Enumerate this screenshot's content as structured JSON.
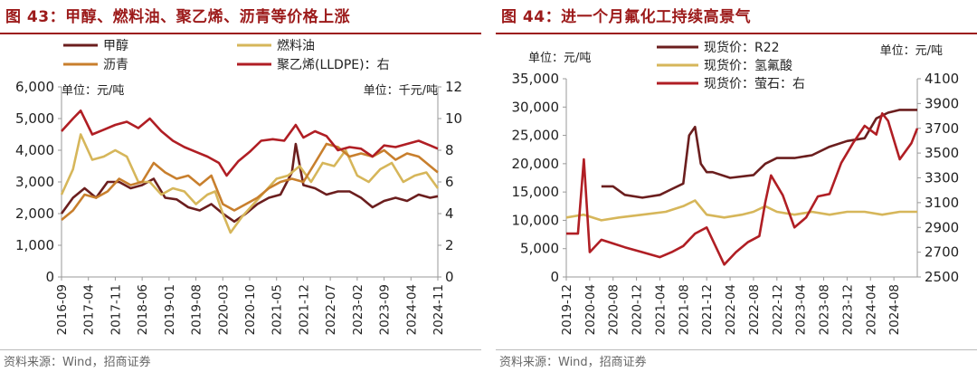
{
  "chart_data": [
    {
      "type": "line",
      "title": "图 43：甲醇、燃料油、聚乙烯、沥青等价格上涨",
      "source": "资料来源：Wind，招商证券",
      "left_unit": "单位：元/吨",
      "right_unit": "单位：千元/吨",
      "ylim_left": [
        0,
        6000
      ],
      "yticks_left": [
        "0",
        "1,000",
        "2,000",
        "3,000",
        "4,000",
        "5,000",
        "6,000"
      ],
      "ylim_right": [
        0,
        12
      ],
      "yticks_right": [
        "0",
        "2",
        "4",
        "6",
        "8",
        "10",
        "12"
      ],
      "x_ticks": [
        "2016-09",
        "2017-04",
        "2017-11",
        "2018-06",
        "2019-01",
        "2019-08",
        "2020-03",
        "2020-10",
        "2021-05",
        "2021-12",
        "2022-07",
        "2023-02",
        "2023-09",
        "2024-04",
        "2024-11"
      ],
      "x_range": [
        "2016-09",
        "2024-11"
      ],
      "legend_placement": "top",
      "series": [
        {
          "name": "甲醇",
          "axis": "left",
          "color": "#6b1e1e",
          "x": [
            "2016-09",
            "2016-12",
            "2017-03",
            "2017-06",
            "2017-09",
            "2017-12",
            "2018-03",
            "2018-06",
            "2018-09",
            "2018-12",
            "2019-03",
            "2019-06",
            "2019-09",
            "2019-12",
            "2020-03",
            "2020-06",
            "2020-09",
            "2020-12",
            "2021-03",
            "2021-06",
            "2021-09",
            "2021-10",
            "2021-12",
            "2022-03",
            "2022-06",
            "2022-09",
            "2022-12",
            "2023-03",
            "2023-06",
            "2023-09",
            "2023-12",
            "2024-03",
            "2024-06",
            "2024-09",
            "2024-11"
          ],
          "values": [
            2000,
            2500,
            2800,
            2500,
            3000,
            3000,
            2800,
            2900,
            3100,
            2500,
            2450,
            2200,
            2100,
            2300,
            2000,
            1750,
            2000,
            2300,
            2500,
            2600,
            3300,
            4200,
            2900,
            2800,
            2600,
            2700,
            2700,
            2500,
            2200,
            2400,
            2500,
            2400,
            2600,
            2500,
            2550
          ]
        },
        {
          "name": "燃料油",
          "axis": "left",
          "color": "#d6b65a",
          "x": [
            "2016-09",
            "2016-12",
            "2017-02",
            "2017-05",
            "2017-08",
            "2017-11",
            "2018-02",
            "2018-05",
            "2018-08",
            "2018-11",
            "2019-02",
            "2019-05",
            "2019-08",
            "2019-11",
            "2020-01",
            "2020-03",
            "2020-05",
            "2020-08",
            "2020-11",
            "2021-02",
            "2021-05",
            "2021-08",
            "2021-11",
            "2022-02",
            "2022-05",
            "2022-08",
            "2022-11",
            "2023-02",
            "2023-05",
            "2023-08",
            "2023-11",
            "2024-02",
            "2024-05",
            "2024-08",
            "2024-11"
          ],
          "values": [
            2600,
            3400,
            4500,
            3700,
            3800,
            4000,
            3800,
            3000,
            3000,
            2600,
            2800,
            2700,
            2300,
            2600,
            2700,
            2000,
            1400,
            1900,
            2300,
            2700,
            3100,
            3200,
            3500,
            3000,
            3600,
            3500,
            4000,
            3200,
            3000,
            3400,
            3600,
            3000,
            3200,
            3300,
            2800
          ]
        },
        {
          "name": "沥青",
          "axis": "left",
          "color": "#c87f2d",
          "x": [
            "2016-09",
            "2016-12",
            "2017-03",
            "2017-06",
            "2017-09",
            "2017-12",
            "2018-03",
            "2018-06",
            "2018-09",
            "2018-12",
            "2019-03",
            "2019-06",
            "2019-09",
            "2019-12",
            "2020-03",
            "2020-06",
            "2020-09",
            "2020-12",
            "2021-03",
            "2021-06",
            "2021-09",
            "2021-12",
            "2022-03",
            "2022-06",
            "2022-09",
            "2022-12",
            "2023-03",
            "2023-06",
            "2023-09",
            "2023-12",
            "2024-03",
            "2024-06",
            "2024-09",
            "2024-11"
          ],
          "values": [
            1800,
            2100,
            2600,
            2500,
            2700,
            3100,
            2900,
            3000,
            3600,
            3300,
            3100,
            3200,
            2900,
            3200,
            2300,
            2100,
            2300,
            2500,
            2800,
            3000,
            3100,
            3000,
            3600,
            4200,
            4100,
            3800,
            3900,
            3800,
            4000,
            3700,
            3900,
            3800,
            3500,
            3300
          ]
        },
        {
          "name": "聚乙烯(LLDPE)：右",
          "axis": "right",
          "color": "#b01e24",
          "x": [
            "2016-09",
            "2016-12",
            "2017-02",
            "2017-05",
            "2017-08",
            "2017-11",
            "2018-02",
            "2018-05",
            "2018-08",
            "2018-11",
            "2019-02",
            "2019-05",
            "2019-08",
            "2019-11",
            "2020-02",
            "2020-04",
            "2020-07",
            "2020-10",
            "2021-01",
            "2021-04",
            "2021-07",
            "2021-10",
            "2021-12",
            "2022-03",
            "2022-06",
            "2022-09",
            "2022-12",
            "2023-03",
            "2023-06",
            "2023-09",
            "2023-12",
            "2024-03",
            "2024-06",
            "2024-09",
            "2024-11"
          ],
          "values": [
            9.2,
            10.0,
            10.5,
            9.0,
            9.3,
            9.6,
            9.8,
            9.4,
            10.0,
            9.2,
            8.6,
            8.2,
            7.9,
            7.6,
            7.2,
            6.4,
            7.3,
            7.9,
            8.6,
            8.7,
            8.6,
            9.6,
            8.8,
            9.2,
            8.9,
            8.0,
            8.2,
            8.1,
            7.6,
            8.3,
            8.2,
            8.4,
            8.6,
            8.3,
            8.1
          ]
        }
      ]
    },
    {
      "type": "line",
      "title": "图 44：进一个月氟化工持续高景气",
      "source": "资料来源：Wind，招商证券",
      "left_unit": "单位：元/吨",
      "right_unit": "单位：元/吨",
      "ylim_left": [
        0,
        35000
      ],
      "yticks_left": [
        "0",
        "5,000",
        "10,000",
        "15,000",
        "20,000",
        "25,000",
        "30,000",
        "35,000"
      ],
      "ylim_right": [
        2500,
        4100
      ],
      "yticks_right": [
        "2500",
        "2700",
        "2900",
        "3100",
        "3300",
        "3500",
        "3700",
        "3900",
        "4100"
      ],
      "x_ticks": [
        "2019-12",
        "2020-04",
        "2020-08",
        "2020-12",
        "2021-04",
        "2021-08",
        "2021-12",
        "2022-04",
        "2022-08",
        "2022-12",
        "2023-04",
        "2023-08",
        "2023-12",
        "2024-04",
        "2024-08"
      ],
      "x_range": [
        "2019-12",
        "2024-12"
      ],
      "legend_placement": "top-left",
      "series": [
        {
          "name": "现货价：R22",
          "axis": "left",
          "color": "#6b1e1e",
          "x": [
            "2020-06",
            "2020-08",
            "2020-10",
            "2021-01",
            "2021-04",
            "2021-06",
            "2021-08",
            "2021-09",
            "2021-10",
            "2021-11",
            "2021-12",
            "2022-01",
            "2022-04",
            "2022-08",
            "2022-10",
            "2022-12",
            "2023-03",
            "2023-06",
            "2023-09",
            "2023-12",
            "2024-03",
            "2024-05",
            "2024-07",
            "2024-09",
            "2024-12"
          ],
          "values": [
            16000,
            16000,
            14500,
            14000,
            14500,
            15500,
            16500,
            25000,
            26500,
            20000,
            18500,
            18500,
            17500,
            18000,
            20000,
            21000,
            21000,
            21500,
            23000,
            24000,
            24500,
            28000,
            29000,
            29500,
            29500
          ]
        },
        {
          "name": "现货价：氢氟酸",
          "axis": "left",
          "color": "#d6b65a",
          "x": [
            "2019-12",
            "2020-03",
            "2020-06",
            "2020-09",
            "2021-01",
            "2021-05",
            "2021-08",
            "2021-10",
            "2021-12",
            "2022-03",
            "2022-06",
            "2022-08",
            "2022-10",
            "2022-12",
            "2023-03",
            "2023-06",
            "2023-09",
            "2023-12",
            "2024-03",
            "2024-06",
            "2024-09",
            "2024-12"
          ],
          "values": [
            10500,
            11000,
            10000,
            10500,
            11000,
            11500,
            12500,
            13500,
            11000,
            10500,
            11000,
            11500,
            12500,
            11500,
            11000,
            11500,
            11000,
            11500,
            11500,
            11000,
            11500,
            11500
          ]
        },
        {
          "name": "现货价：萤石：右",
          "axis": "right",
          "color": "#b01e24",
          "x": [
            "2019-12",
            "2020-02",
            "2020-03",
            "2020-04",
            "2020-06",
            "2020-08",
            "2020-10",
            "2021-01",
            "2021-04",
            "2021-06",
            "2021-08",
            "2021-10",
            "2021-12",
            "2022-03",
            "2022-05",
            "2022-07",
            "2022-09",
            "2022-10",
            "2022-11",
            "2023-01",
            "2023-03",
            "2023-05",
            "2023-07",
            "2023-09",
            "2023-11",
            "2024-01",
            "2024-03",
            "2024-05",
            "2024-06",
            "2024-07",
            "2024-09",
            "2024-11",
            "2024-12"
          ],
          "values": [
            2850,
            2850,
            3450,
            2700,
            2800,
            2770,
            2740,
            2700,
            2660,
            2700,
            2750,
            2850,
            2900,
            2600,
            2700,
            2780,
            2830,
            3100,
            3320,
            3160,
            2900,
            2980,
            3150,
            3170,
            3420,
            3580,
            3720,
            3650,
            3820,
            3760,
            3450,
            3580,
            3700
          ]
        }
      ]
    }
  ]
}
